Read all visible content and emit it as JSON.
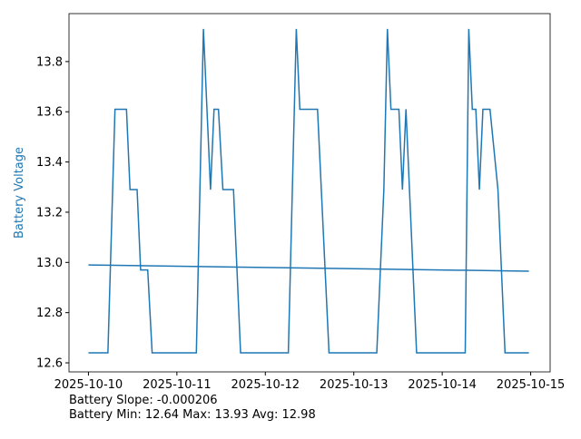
{
  "chart_data": {
    "type": "line",
    "ylabel": "Battery Voltage",
    "ylabel_color": "#1f77b4",
    "x": [
      0,
      0.22,
      0.3,
      0.43,
      0.47,
      0.55,
      0.59,
      0.67,
      0.72,
      1.22,
      1.3,
      1.38,
      1.42,
      1.47,
      1.52,
      1.64,
      1.72,
      2.26,
      2.35,
      2.39,
      2.59,
      2.72,
      3.26,
      3.34,
      3.38,
      3.42,
      3.51,
      3.55,
      3.59,
      3.71,
      4.26,
      4.3,
      4.34,
      4.38,
      4.42,
      4.46,
      4.54,
      4.63,
      4.71,
      4.98
    ],
    "series": [
      {
        "name": "Battery",
        "color": "#1f77b4",
        "values": [
          12.64,
          12.64,
          13.61,
          13.61,
          13.29,
          13.29,
          12.97,
          12.97,
          12.64,
          12.64,
          13.93,
          13.29,
          13.61,
          13.61,
          13.29,
          13.29,
          12.64,
          12.64,
          13.93,
          13.61,
          13.61,
          12.64,
          12.64,
          13.29,
          13.93,
          13.61,
          13.61,
          13.29,
          13.61,
          12.64,
          12.64,
          13.93,
          13.61,
          13.61,
          13.29,
          13.61,
          13.61,
          13.29,
          12.64,
          12.64
        ]
      },
      {
        "color": "#1f77b4",
        "x": [
          0,
          4.98
        ],
        "values": [
          12.99,
          12.965
        ]
      }
    ],
    "xlim": [
      -0.22,
      5.22
    ],
    "ylim": [
      12.564,
      13.991
    ],
    "xticks": [
      {
        "value": 0,
        "label": "2025-10-10"
      },
      {
        "value": 1,
        "label": "2025-10-11"
      },
      {
        "value": 2,
        "label": "2025-10-12"
      },
      {
        "value": 3,
        "label": "2025-10-13"
      },
      {
        "value": 4,
        "label": "2025-10-14"
      },
      {
        "value": 5,
        "label": "2025-10-15"
      }
    ],
    "yticks": [
      12.6,
      12.8,
      {
        "value": 13,
        "label": "13.0"
      },
      13.2,
      13.4,
      13.6,
      13.8
    ],
    "grid": false,
    "annotations": [
      "Battery Slope: -0.000206",
      "Battery Min: 12.64 Max: 13.93 Avg: 12.98"
    ]
  }
}
